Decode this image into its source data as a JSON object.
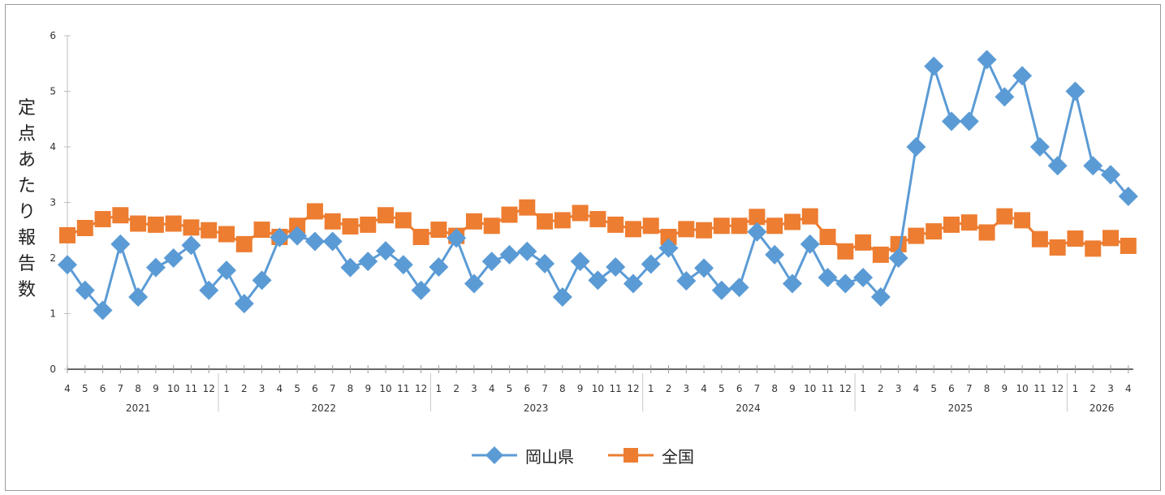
{
  "chart_data": {
    "type": "line",
    "ylabel": "定点あたり報告数",
    "ylim": [
      0,
      6
    ],
    "yticks": [
      "0",
      "1",
      "2",
      "3",
      "4",
      "5",
      "6"
    ],
    "x_month_labels": [
      "4",
      "5",
      "6",
      "7",
      "8",
      "9",
      "10",
      "11",
      "12",
      "1",
      "2",
      "3",
      "4",
      "5",
      "6",
      "7",
      "8",
      "9",
      "10",
      "11",
      "12",
      "1",
      "2",
      "3",
      "4",
      "5",
      "6",
      "7",
      "8",
      "9",
      "10",
      "11",
      "12",
      "1",
      "2",
      "3",
      "4",
      "5",
      "6",
      "7",
      "8",
      "9",
      "10",
      "11",
      "12",
      "1",
      "2",
      "3",
      "4",
      "5",
      "6",
      "7",
      "8",
      "9",
      "10",
      "11",
      "12",
      "1",
      "2",
      "3",
      "4"
    ],
    "year_labels": [
      {
        "label": "2021",
        "center_index": 4
      },
      {
        "label": "2022",
        "center_index": 14.5
      },
      {
        "label": "2023",
        "center_index": 26.5
      },
      {
        "label": "2024",
        "center_index": 38.5
      },
      {
        "label": "2025",
        "center_index": 50.5
      },
      {
        "label": "2026",
        "center_index": 58.5
      }
    ],
    "series": [
      {
        "name": "岡山県",
        "color": "#5b9bd5",
        "marker": "diamond",
        "values": [
          1.88,
          1.42,
          1.06,
          2.25,
          1.3,
          1.83,
          2.0,
          2.23,
          1.42,
          1.78,
          1.18,
          1.6,
          2.37,
          2.4,
          2.3,
          2.3,
          1.83,
          1.94,
          2.13,
          1.88,
          1.42,
          1.84,
          2.36,
          1.54,
          1.94,
          2.06,
          2.12,
          1.9,
          1.3,
          1.94,
          1.6,
          1.84,
          1.54,
          1.89,
          2.18,
          1.59,
          1.82,
          1.42,
          1.47,
          2.47,
          2.06,
          1.54,
          2.25,
          1.65,
          1.54,
          1.65,
          1.3,
          2.0,
          4.0,
          5.45,
          4.46,
          4.46,
          5.57,
          4.9,
          5.28,
          4.0,
          3.66,
          5.0,
          3.66,
          3.5,
          3.11
        ]
      },
      {
        "name": "全国",
        "color": "#ed7d31",
        "marker": "square",
        "values": [
          2.41,
          2.54,
          2.7,
          2.77,
          2.62,
          2.6,
          2.62,
          2.55,
          2.5,
          2.43,
          2.25,
          2.51,
          2.38,
          2.58,
          2.84,
          2.66,
          2.57,
          2.6,
          2.77,
          2.68,
          2.38,
          2.51,
          2.4,
          2.66,
          2.58,
          2.78,
          2.91,
          2.66,
          2.68,
          2.81,
          2.7,
          2.6,
          2.52,
          2.58,
          2.38,
          2.52,
          2.5,
          2.58,
          2.58,
          2.74,
          2.58,
          2.65,
          2.75,
          2.38,
          2.12,
          2.28,
          2.06,
          2.25,
          2.4,
          2.48,
          2.6,
          2.64,
          2.46,
          2.75,
          2.68,
          2.34,
          2.19,
          2.35,
          2.17,
          2.36,
          2.22
        ]
      }
    ],
    "legend_position": "bottom",
    "grid": false
  }
}
